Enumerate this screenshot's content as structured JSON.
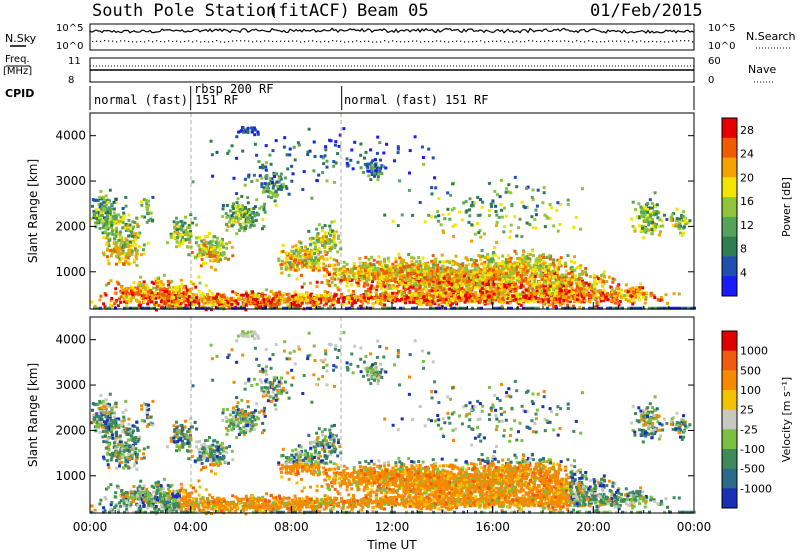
{
  "header": {
    "station": "South Pole Station",
    "mode": "(fitACF)",
    "beam": "Beam 05",
    "date": "01/Feb/2015"
  },
  "left_labels": {
    "nsky": "N.Sky",
    "freq_line1": "Freq.",
    "freq_line2": "[MHz]",
    "cpid": "CPID"
  },
  "right_labels": {
    "nsearch": "N.Search",
    "nave": "Nave"
  },
  "noise_panel": {
    "left_ticks": [
      "10^5",
      "10^0"
    ],
    "right_ticks": [
      "10^5",
      "10^0"
    ]
  },
  "freq_panel": {
    "left_ticks": [
      "11",
      "8"
    ],
    "right_ticks": [
      "60",
      "0"
    ]
  },
  "cpid_segments": [
    {
      "label": "normal (fast) 151 RF",
      "start_hour": 0
    },
    {
      "label": "rbsp 200 RF",
      "start_hour": 4.0
    },
    {
      "label": "normal (fast) 151 RF",
      "start_hour": 10.0
    }
  ],
  "chart_data": [
    {
      "type": "heatmap",
      "title": "Power",
      "ylabel": "Slant Range [km]",
      "xlabel": "",
      "y_ticks": [
        "1000",
        "2000",
        "3000",
        "4000"
      ],
      "ylim": [
        180,
        4500
      ],
      "xlim_hours": [
        0,
        24
      ],
      "colorbar": {
        "label": "Power [dB]",
        "ticks": [
          "4",
          "8",
          "12",
          "16",
          "20",
          "24",
          "28"
        ],
        "range": [
          0,
          30
        ],
        "colors": [
          "#1a1aff",
          "#1f4fb0",
          "#2e7d4f",
          "#55a35a",
          "#8fc53a",
          "#f2e600",
          "#f5a100",
          "#f25a00",
          "#e60000"
        ]
      }
    },
    {
      "type": "heatmap",
      "title": "Velocity",
      "ylabel": "Slant Range [km]",
      "xlabel": "Time UT",
      "y_ticks": [
        "1000",
        "2000",
        "3000",
        "4000"
      ],
      "x_ticks": [
        "00:00",
        "04:00",
        "08:00",
        "12:00",
        "16:00",
        "20:00",
        "00:00"
      ],
      "ylim": [
        180,
        4500
      ],
      "xlim_hours": [
        0,
        24
      ],
      "colorbar": {
        "label": "Velocity [m s⁻¹]",
        "ticks": [
          "1000",
          "500",
          "100",
          "25",
          "-25",
          "-100",
          "-500",
          "-1000"
        ],
        "colors": [
          "#1a2fb5",
          "#2b6a8a",
          "#3d8a5a",
          "#7ac043",
          "#c8c8c0",
          "#f2c200",
          "#f58a00",
          "#f05a10",
          "#e00000"
        ]
      }
    }
  ]
}
